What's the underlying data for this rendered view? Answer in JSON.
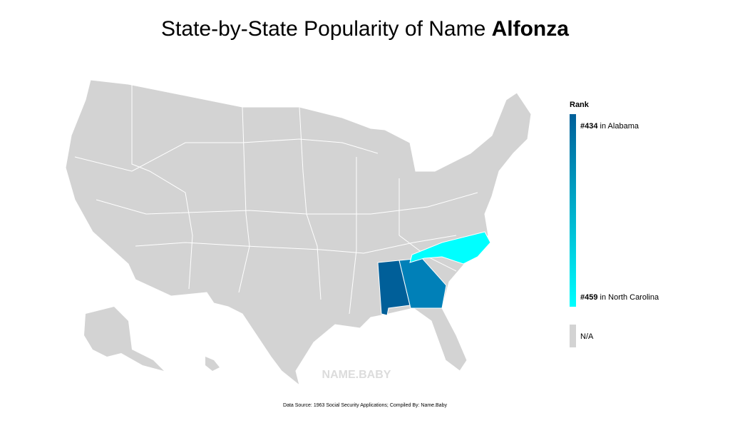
{
  "title": {
    "text": "State-by-State Popularity of Name",
    "name": "Alfonza"
  },
  "legend": {
    "title": "Rank",
    "top": {
      "rank": "#434",
      "text": "in Alabama"
    },
    "bottom": {
      "rank": "#459",
      "text": "in North Carolina"
    },
    "na": "N/A"
  },
  "watermark": "NAME.BABY",
  "footer": "Data Source: 1963 Social Security Applications; Compiled By: Name.Baby"
}
